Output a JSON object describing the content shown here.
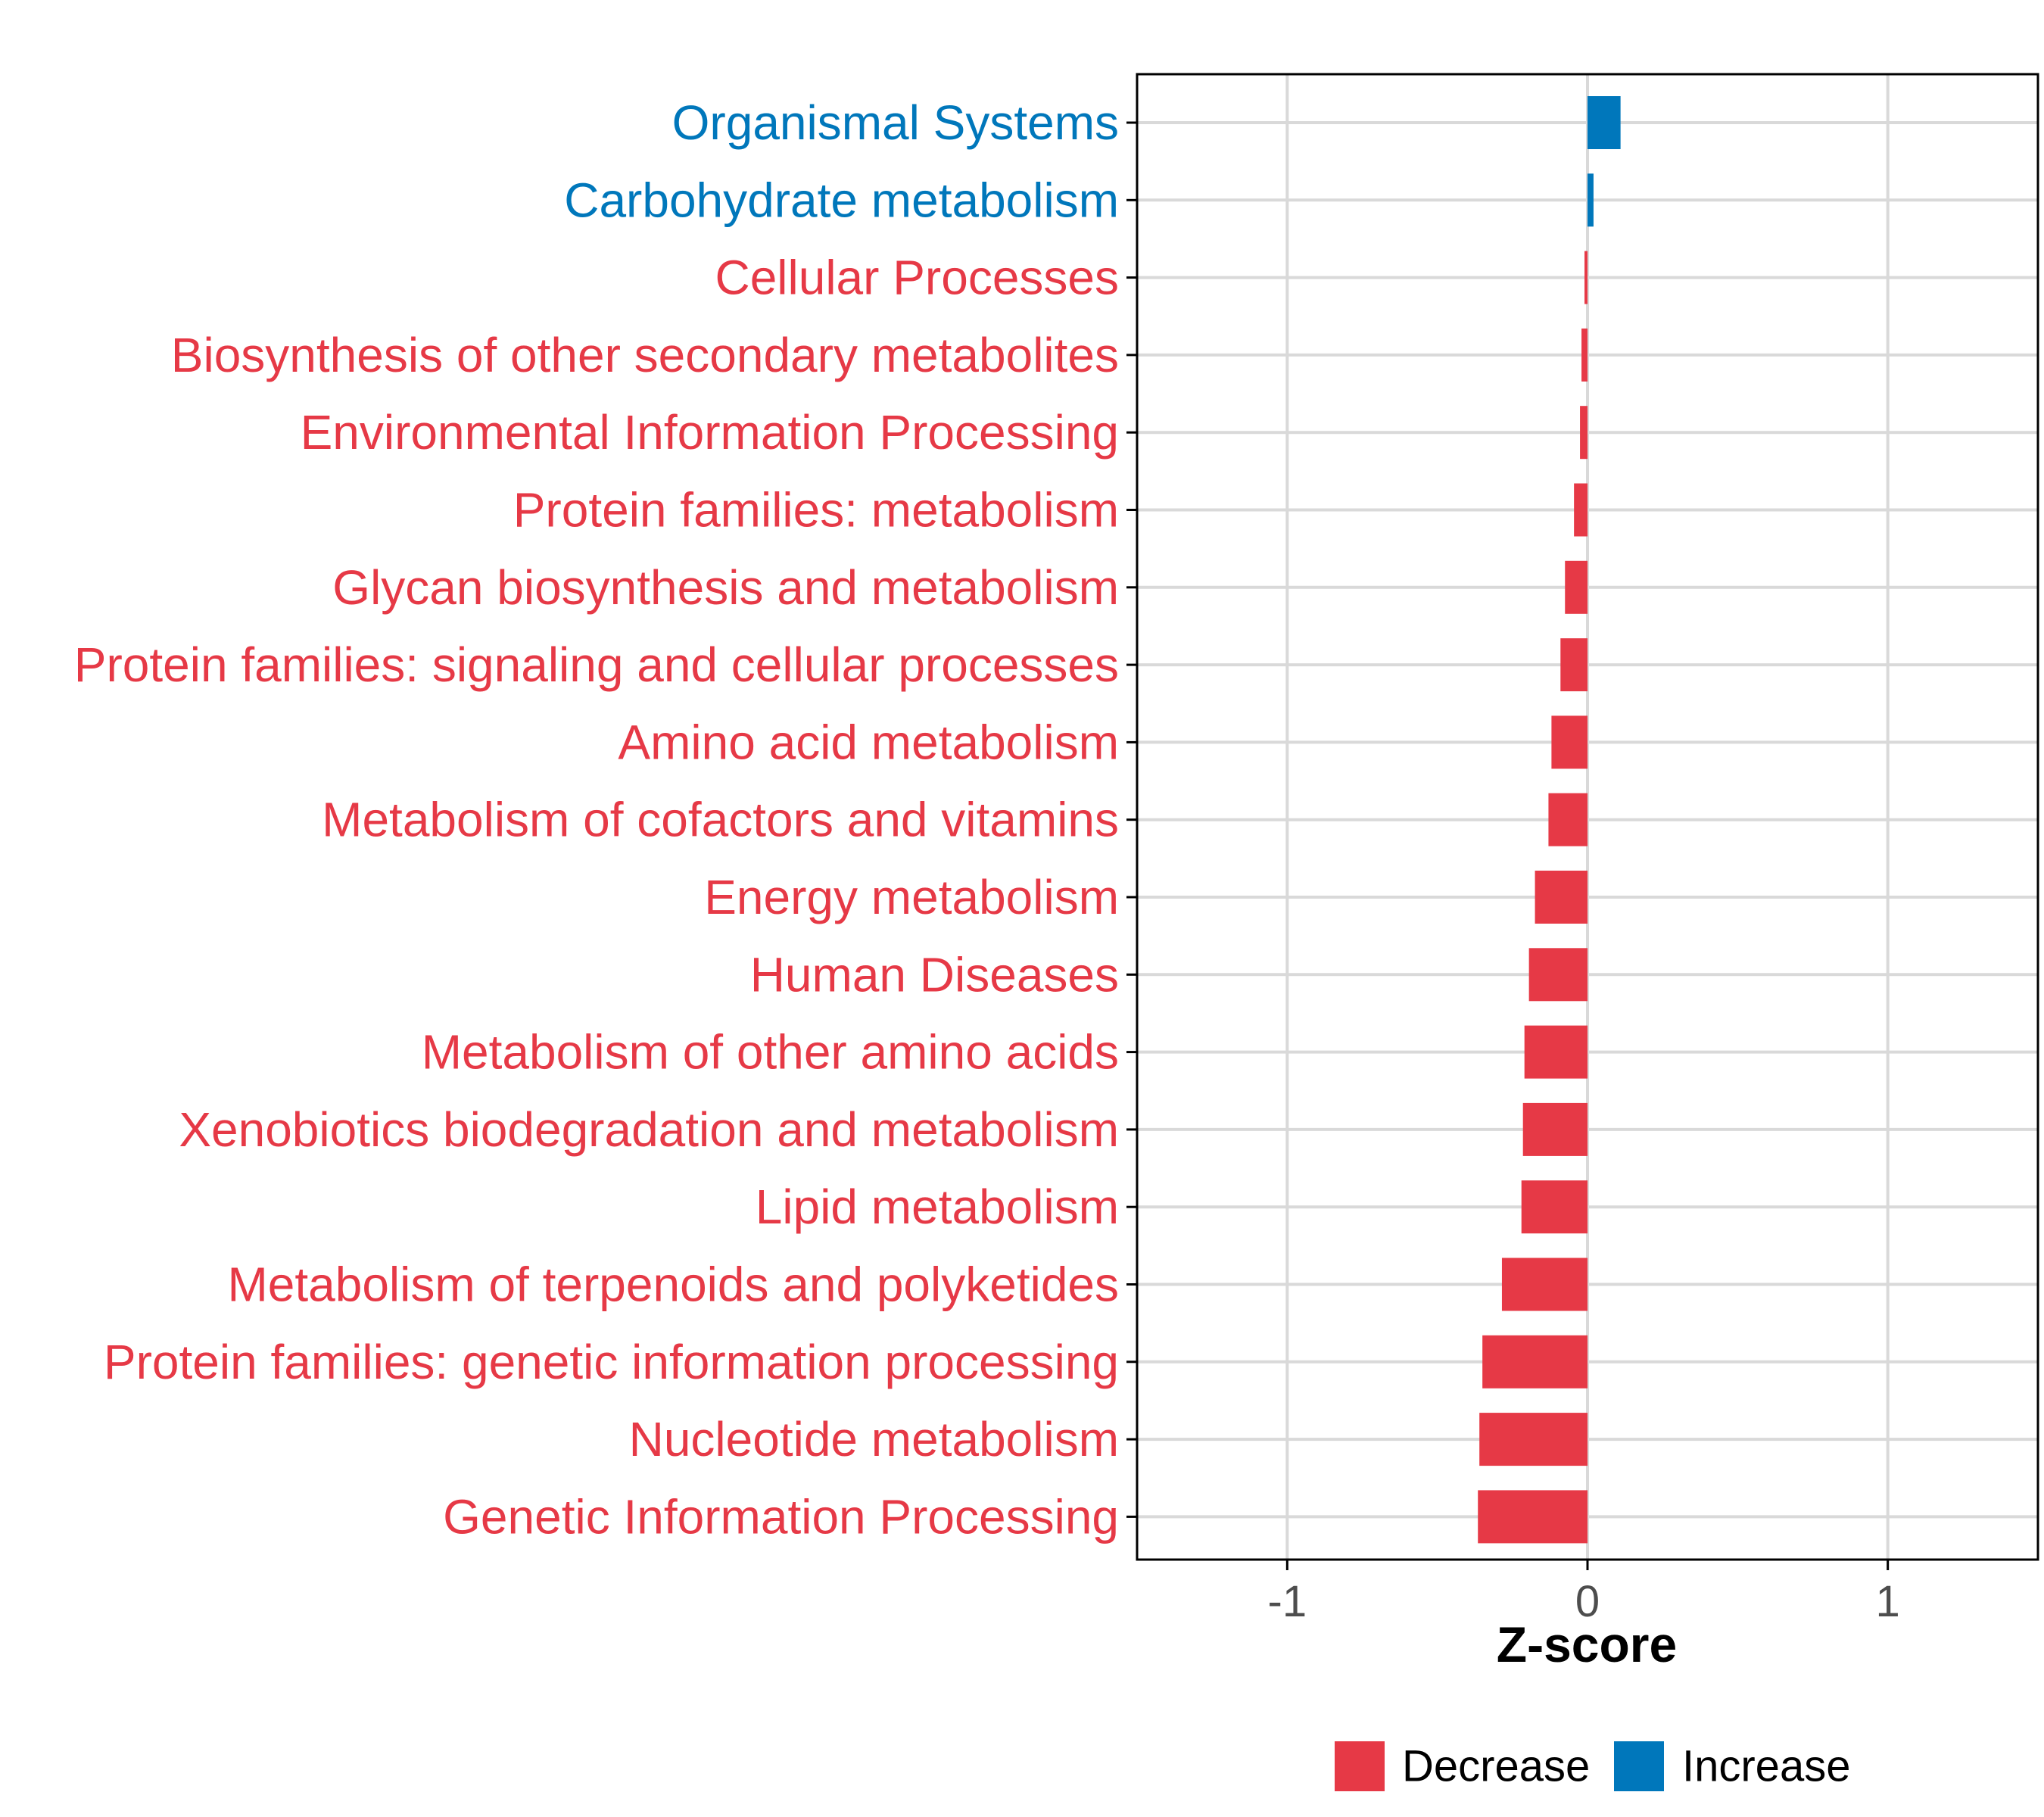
{
  "chart_data": {
    "type": "bar",
    "orientation": "horizontal",
    "title": "",
    "xlabel": "Z-score",
    "ylabel": "",
    "xlim": [
      -1.5,
      1.5
    ],
    "x_ticks": [
      -1,
      0,
      1
    ],
    "x_tick_labels": [
      "-1",
      "0",
      "1"
    ],
    "grid": true,
    "legend_position": "bottom",
    "legend": [
      {
        "name": "Decrease",
        "color": "#E63946"
      },
      {
        "name": "Increase",
        "color": "#0077BB"
      }
    ],
    "categories": [
      "Organismal Systems",
      "Carbohydrate metabolism",
      "Cellular Processes",
      "Biosynthesis of other secondary metabolites",
      "Environmental Information Processing",
      "Protein families: metabolism",
      "Glycan biosynthesis and metabolism",
      "Protein families: signaling and cellular processes",
      "Amino acid metabolism",
      "Metabolism of cofactors and vitamins",
      "Energy metabolism",
      "Human Diseases",
      "Metabolism of other amino acids",
      "Xenobiotics biodegradation and metabolism",
      "Lipid metabolism",
      "Metabolism of terpenoids and polyketides",
      "Protein families: genetic information processing",
      "Nucleotide metabolism",
      "Genetic Information Processing"
    ],
    "values": [
      0.11,
      0.02,
      -0.01,
      -0.02,
      -0.025,
      -0.045,
      -0.075,
      -0.09,
      -0.12,
      -0.13,
      -0.175,
      -0.195,
      -0.21,
      -0.215,
      -0.22,
      -0.285,
      -0.35,
      -0.36,
      -0.365
    ],
    "groups": [
      "Increase",
      "Increase",
      "Decrease",
      "Decrease",
      "Decrease",
      "Decrease",
      "Decrease",
      "Decrease",
      "Decrease",
      "Decrease",
      "Decrease",
      "Decrease",
      "Decrease",
      "Decrease",
      "Decrease",
      "Decrease",
      "Decrease",
      "Decrease",
      "Decrease"
    ]
  },
  "colors": {
    "decrease": "#E63946",
    "increase": "#0077BB",
    "grid": "#D9D9D9",
    "axis": "#000000",
    "tick_text": "#4D4D4D"
  }
}
